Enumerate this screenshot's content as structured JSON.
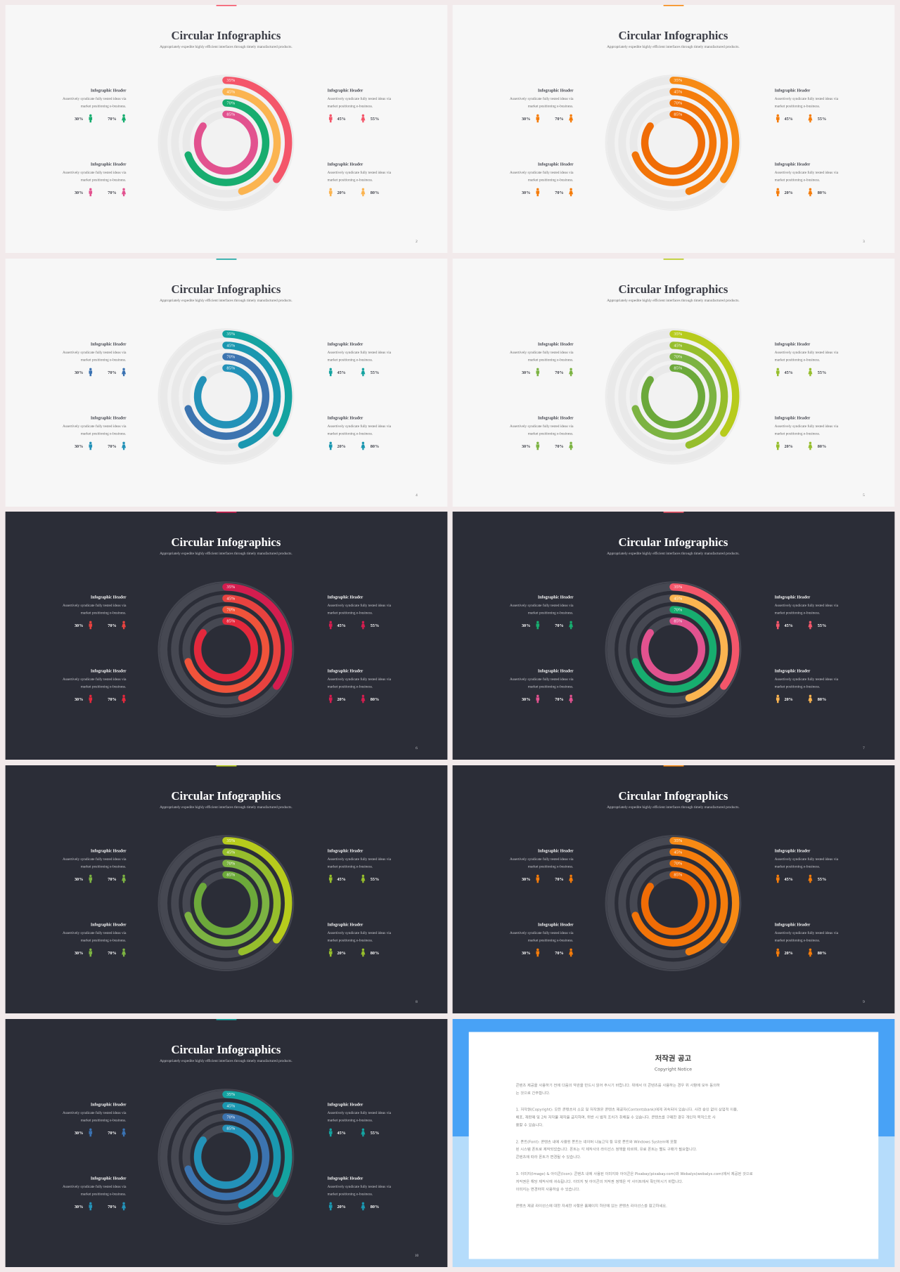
{
  "template": {
    "title": "Circular Infographics",
    "subtitle": "Appropriately expedite highly efficient interfaces through timely manufactured products.",
    "blocks": [
      {
        "header": "Infographic Header",
        "text": [
          "Assertively syndicate fully tested ideas via",
          "market positioning e-business."
        ],
        "stats": [
          "30%",
          "70%"
        ]
      },
      {
        "header": "Infographic Header",
        "text": [
          "Assertively syndicate fully tested ideas via",
          "market positioning e-business."
        ],
        "stats": [
          "45%",
          "55%"
        ]
      },
      {
        "header": "Infographic Header",
        "text": [
          "Assertively syndicate fully tested ideas via",
          "market positioning e-business."
        ],
        "stats": [
          "30%",
          "70%"
        ]
      },
      {
        "header": "Infographic Header",
        "text": [
          "Assertively syndicate fully tested ideas via",
          "market positioning e-business."
        ],
        "stats": [
          "20%",
          "80%"
        ]
      }
    ],
    "rings": [
      {
        "value": 35,
        "label": "35%"
      },
      {
        "value": 45,
        "label": "45%"
      },
      {
        "value": 70,
        "label": "70%"
      },
      {
        "value": 85,
        "label": "85%"
      }
    ]
  },
  "slides": [
    {
      "page": "2",
      "theme": "light",
      "colors": [
        "#f4566a",
        "#fbb450",
        "#17ad6f",
        "#e2528f"
      ],
      "icon_colors": [
        "#17ad6f",
        "#f4566a",
        "#e2528f",
        "#fbb450"
      ]
    },
    {
      "page": "3",
      "theme": "light",
      "colors": [
        "#f78a14",
        "#f57d0c",
        "#f27408",
        "#f06c05"
      ],
      "icon_colors": [
        "#f57c0a",
        "#f57c0a",
        "#f57c0a",
        "#f57c0a"
      ]
    },
    {
      "page": "4",
      "theme": "light",
      "colors": [
        "#14a3a0",
        "#1a97b0",
        "#3c74b0",
        "#2392b8"
      ],
      "icon_colors": [
        "#3a72b2",
        "#14a3a0",
        "#2392b8",
        "#1a97b0"
      ]
    },
    {
      "page": "5",
      "theme": "light",
      "colors": [
        "#b7cb1c",
        "#96be2c",
        "#7cb342",
        "#6ca93a"
      ],
      "icon_colors": [
        "#7cb342",
        "#96be2c",
        "#7cb342",
        "#96be2c"
      ]
    },
    {
      "page": "6",
      "theme": "dark",
      "colors": [
        "#d41d4f",
        "#e8423f",
        "#f0533a",
        "#e3283c"
      ],
      "icon_colors": [
        "#e8423f",
        "#d41d4f",
        "#e3283c",
        "#d41d4f"
      ]
    },
    {
      "page": "7",
      "theme": "dark",
      "colors": [
        "#f4566a",
        "#fbb450",
        "#17ad6f",
        "#e2528f"
      ],
      "icon_colors": [
        "#17ad6f",
        "#f4566a",
        "#e2528f",
        "#fbb450"
      ]
    },
    {
      "page": "8",
      "theme": "dark",
      "colors": [
        "#b7cb1c",
        "#96be2c",
        "#7cb342",
        "#6ca93a"
      ],
      "icon_colors": [
        "#7cb342",
        "#96be2c",
        "#7cb342",
        "#96be2c"
      ]
    },
    {
      "page": "9",
      "theme": "dark",
      "colors": [
        "#f78a14",
        "#f57d0c",
        "#f27408",
        "#f06c05"
      ],
      "icon_colors": [
        "#f57c0a",
        "#f57c0a",
        "#f57c0a",
        "#f57c0a"
      ]
    },
    {
      "page": "10",
      "theme": "dark",
      "colors": [
        "#14a3a0",
        "#1a97b0",
        "#3c74b0",
        "#2392b8"
      ],
      "icon_colors": [
        "#3a72b2",
        "#14a3a0",
        "#2392b8",
        "#1a97b0"
      ]
    }
  ],
  "notice": {
    "title": "저작권 공고",
    "subtitle": "Copyright Notice",
    "paragraphs": [
      [
        "콘텐츠 제공을 사용하기 전에 다음의 약관을 반드시 읽어 주시기 바랍니다. 위에서 이 콘텐츠를 사용하는 경우 위 사항에 모두 동의하",
        "는 것으로 간주합니다."
      ],
      [
        "1. 저작권(Copyright): 모든 콘텐츠의 소유 및 저작권은 콘텐츠 제공자(Contentsbank)에게 귀속되어 있습니다. 사전 승인 없이 상업적 이용,",
        "배포, 재판매 및 2차 저작물 제작을 금지하며, 위반 시 법적 조치가 취해질 수 있습니다. 콘텐츠를 구매한 경우 개인적 목적으로 사",
        "용할 수 있습니다."
      ],
      [
        "2. 폰트(Font): 콘텐츠 내에 사용된 폰트는 네이버 나눔고딕 등 무료 폰트와 Windows System에 포함",
        "된 시스템 폰트로 제작되었습니다. 폰트는 각 제작사의 라이선스 정책을 따르며, 유료 폰트는 별도 구매가 필요합니다.",
        "콘텐츠에 따라 폰트가 변경될 수 있습니다."
      ],
      [
        "3. 이미지(Image) & 아이콘(Icon): 콘텐츠 내에 사용된 이미지와 아이콘은 Pixabay(pixabay.com)와 Webalys(webalys.com)에서 제공된 것으로",
        "저작권은 해당 제작사에 귀속됩니다. 이미지 및 아이콘의 저작권 정책은 각 사이트에서 확인하시기 바랍니다.",
        "이미지는 변경하여 사용하실 수 있습니다."
      ],
      [
        "콘텐츠 제공 라이선스에 대한 자세한 사항은 홈페이지 하단에 있는 콘텐츠 라이선스를 참고하세요."
      ]
    ]
  }
}
